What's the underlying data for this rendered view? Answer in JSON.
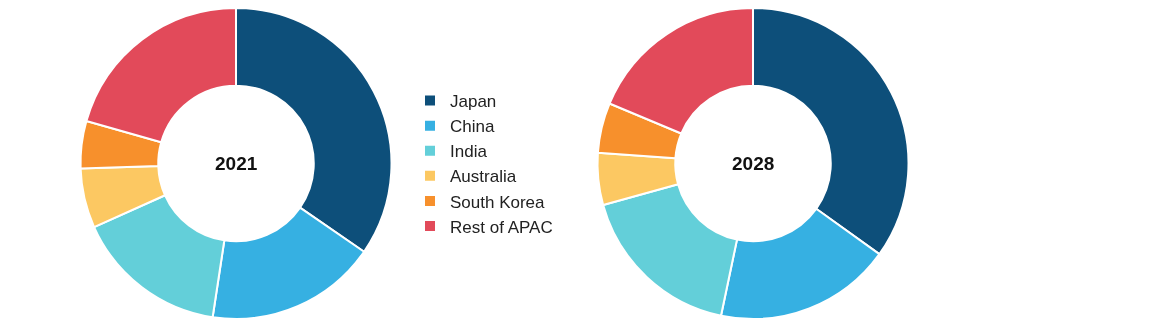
{
  "chart_data": {
    "type": "donut",
    "categories": [
      "Japan",
      "China",
      "India",
      "Australia",
      "South Korea",
      "Rest of APAC"
    ],
    "colors": [
      "#0d4f7a",
      "#36b0e2",
      "#63cfd9",
      "#fcc862",
      "#f7902c",
      "#e24a5a"
    ],
    "legend": "right",
    "series": [
      {
        "name": "2021",
        "values": [
          34.6,
          17.8,
          15.9,
          6.2,
          4.9,
          20.6
        ]
      },
      {
        "name": "2028",
        "values": [
          34.9,
          18.4,
          17.4,
          5.4,
          5.2,
          18.7
        ]
      }
    ]
  }
}
